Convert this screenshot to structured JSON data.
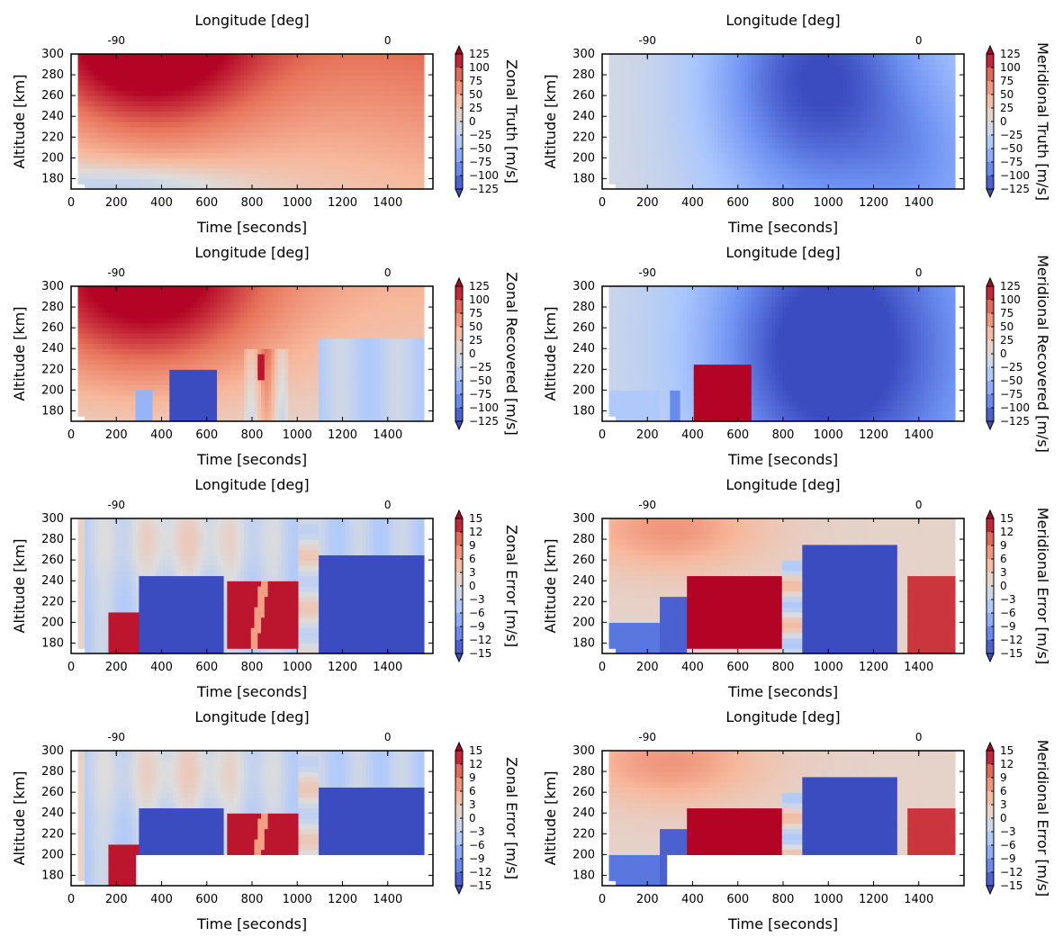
{
  "figure": {
    "panel_type": "heatmap"
  },
  "chart_data": [
    {
      "type": "heatmap",
      "xlabel": "Time [seconds]",
      "ylabel": "Altitude [km]",
      "top_axis_label": "Longitude [deg]",
      "top_ticks": [
        {
          "at": 200,
          "label": "-90"
        },
        {
          "at": 1400,
          "label": "0"
        }
      ],
      "x_ticks": [
        0,
        200,
        400,
        600,
        800,
        1000,
        1200,
        1400
      ],
      "y_ticks": [
        180,
        200,
        220,
        240,
        260,
        280,
        300
      ],
      "xlim": [
        0,
        1600
      ],
      "ylim": [
        170,
        300
      ],
      "colorbar": {
        "label": "Zonal Truth [m/s]",
        "ticks": [
          "125",
          "100",
          "75",
          "50",
          "25",
          "0",
          "−25",
          "−50",
          "−75",
          "−100",
          "−125"
        ],
        "range": [
          -125,
          125
        ]
      },
      "pattern": "zonal_truth",
      "blank_region": null
    },
    {
      "type": "heatmap",
      "xlabel": "Time [seconds]",
      "ylabel": "Altitude [km]",
      "top_axis_label": "Longitude [deg]",
      "top_ticks": [
        {
          "at": 200,
          "label": "-90"
        },
        {
          "at": 1400,
          "label": "0"
        }
      ],
      "x_ticks": [
        0,
        200,
        400,
        600,
        800,
        1000,
        1200,
        1400
      ],
      "y_ticks": [
        180,
        200,
        220,
        240,
        260,
        280,
        300
      ],
      "xlim": [
        0,
        1600
      ],
      "ylim": [
        170,
        300
      ],
      "colorbar": {
        "label": "Meridional Truth [m/s]",
        "ticks": [
          "125",
          "100",
          "75",
          "50",
          "25",
          "0",
          "−25",
          "−50",
          "−75",
          "−100",
          "−125"
        ],
        "range": [
          -125,
          125
        ]
      },
      "pattern": "meridional_truth",
      "blank_region": null
    },
    {
      "type": "heatmap",
      "xlabel": "Time [seconds]",
      "ylabel": "Altitude [km]",
      "top_axis_label": "Longitude [deg]",
      "top_ticks": [
        {
          "at": 200,
          "label": "-90"
        },
        {
          "at": 1400,
          "label": "0"
        }
      ],
      "x_ticks": [
        0,
        200,
        400,
        600,
        800,
        1000,
        1200,
        1400
      ],
      "y_ticks": [
        180,
        200,
        220,
        240,
        260,
        280,
        300
      ],
      "xlim": [
        0,
        1600
      ],
      "ylim": [
        170,
        300
      ],
      "colorbar": {
        "label": "Zonal Recovered [m/s]",
        "ticks": [
          "125",
          "100",
          "75",
          "50",
          "25",
          "0",
          "−25",
          "−50",
          "−75",
          "−100",
          "−125"
        ],
        "range": [
          -125,
          125
        ]
      },
      "pattern": "zonal_recovered",
      "blank_region": null
    },
    {
      "type": "heatmap",
      "xlabel": "Time [seconds]",
      "ylabel": "Altitude [km]",
      "top_axis_label": "Longitude [deg]",
      "top_ticks": [
        {
          "at": 200,
          "label": "-90"
        },
        {
          "at": 1400,
          "label": "0"
        }
      ],
      "x_ticks": [
        0,
        200,
        400,
        600,
        800,
        1000,
        1200,
        1400
      ],
      "y_ticks": [
        180,
        200,
        220,
        240,
        260,
        280,
        300
      ],
      "xlim": [
        0,
        1600
      ],
      "ylim": [
        170,
        300
      ],
      "colorbar": {
        "label": "Meridional Recovered [m/s]",
        "ticks": [
          "125",
          "100",
          "75",
          "50",
          "25",
          "0",
          "−25",
          "−50",
          "−75",
          "−100",
          "−125"
        ],
        "range": [
          -125,
          125
        ]
      },
      "pattern": "meridional_recovered",
      "blank_region": null
    },
    {
      "type": "heatmap",
      "xlabel": "Time [seconds]",
      "ylabel": "Altitude [km]",
      "top_axis_label": "Longitude [deg]",
      "top_ticks": [
        {
          "at": 200,
          "label": "-90"
        },
        {
          "at": 1400,
          "label": "0"
        }
      ],
      "x_ticks": [
        0,
        200,
        400,
        600,
        800,
        1000,
        1200,
        1400
      ],
      "y_ticks": [
        180,
        200,
        220,
        240,
        260,
        280,
        300
      ],
      "xlim": [
        0,
        1600
      ],
      "ylim": [
        170,
        300
      ],
      "colorbar": {
        "label": "Zonal Error [m/s]",
        "ticks": [
          "15",
          "12",
          "9",
          "6",
          "3",
          "0",
          "−3",
          "−6",
          "−9",
          "−12",
          "−15"
        ],
        "range": [
          -15,
          15
        ]
      },
      "pattern": "zonal_error",
      "blank_region": null
    },
    {
      "type": "heatmap",
      "xlabel": "Time [seconds]",
      "ylabel": "Altitude [km]",
      "top_axis_label": "Longitude [deg]",
      "top_ticks": [
        {
          "at": 200,
          "label": "-90"
        },
        {
          "at": 1400,
          "label": "0"
        }
      ],
      "x_ticks": [
        0,
        200,
        400,
        600,
        800,
        1000,
        1200,
        1400
      ],
      "y_ticks": [
        180,
        200,
        220,
        240,
        260,
        280,
        300
      ],
      "xlim": [
        0,
        1600
      ],
      "ylim": [
        170,
        300
      ],
      "colorbar": {
        "label": "Meridional Error [m/s]",
        "ticks": [
          "15",
          "12",
          "9",
          "6",
          "3",
          "0",
          "−3",
          "−6",
          "−9",
          "−12",
          "−15"
        ],
        "range": [
          -15,
          15
        ]
      },
      "pattern": "meridional_error",
      "blank_region": null
    },
    {
      "type": "heatmap",
      "xlabel": "Time [seconds]",
      "ylabel": "Altitude [km]",
      "top_axis_label": "Longitude [deg]",
      "top_ticks": [
        {
          "at": 200,
          "label": "-90"
        },
        {
          "at": 1400,
          "label": "0"
        }
      ],
      "x_ticks": [
        0,
        200,
        400,
        600,
        800,
        1000,
        1200,
        1400
      ],
      "y_ticks": [
        180,
        200,
        220,
        240,
        260,
        280,
        300
      ],
      "xlim": [
        0,
        1600
      ],
      "ylim": [
        170,
        300
      ],
      "colorbar": {
        "label": "Zonal Error [m/s]",
        "ticks": [
          "15",
          "12",
          "9",
          "6",
          "3",
          "0",
          "−3",
          "−6",
          "−9",
          "−12",
          "−15"
        ],
        "range": [
          -15,
          15
        ]
      },
      "pattern": "zonal_error",
      "blank_region": {
        "x_min": 280,
        "y_max": 200
      }
    },
    {
      "type": "heatmap",
      "xlabel": "Time [seconds]",
      "ylabel": "Altitude [km]",
      "top_axis_label": "Longitude [deg]",
      "top_ticks": [
        {
          "at": 200,
          "label": "-90"
        },
        {
          "at": 1400,
          "label": "0"
        }
      ],
      "x_ticks": [
        0,
        200,
        400,
        600,
        800,
        1000,
        1200,
        1400
      ],
      "y_ticks": [
        180,
        200,
        220,
        240,
        260,
        280,
        300
      ],
      "xlim": [
        0,
        1600
      ],
      "ylim": [
        170,
        300
      ],
      "colorbar": {
        "label": "Meridional Error [m/s]",
        "ticks": [
          "15",
          "12",
          "9",
          "6",
          "3",
          "0",
          "−3",
          "−6",
          "−9",
          "−12",
          "−15"
        ],
        "range": [
          -15,
          15
        ]
      },
      "pattern": "meridional_error",
      "blank_region": {
        "x_min": 280,
        "y_max": 200
      }
    }
  ],
  "colormap": {
    "name": "coolwarm",
    "stops": [
      "#3b4cc0",
      "#6f92f3",
      "#aac7fd",
      "#dddddd",
      "#f7b89c",
      "#e7745b",
      "#b40426"
    ]
  }
}
